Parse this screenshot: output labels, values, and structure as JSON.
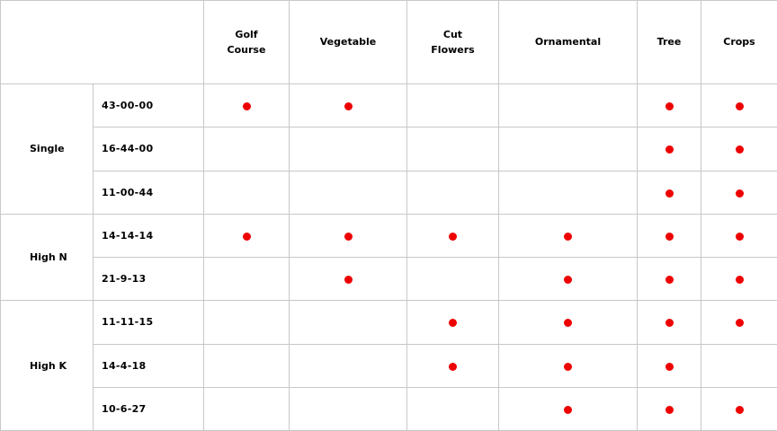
{
  "colors": {
    "dot": "#ee0000",
    "border": "#c8c8c8",
    "text": "#000000"
  },
  "chart_data": {
    "type": "table",
    "title": "",
    "corner_label": "",
    "columns": [
      "Golf Course",
      "Vegetable",
      "Cut Flowers",
      "Ornamental",
      "Tree",
      "Crops"
    ],
    "mark_symbol": "red-dot",
    "row_groups": [
      {
        "label": "Single",
        "rows": [
          {
            "formulation": "43-00-00",
            "marks": [
              true,
              true,
              false,
              false,
              true,
              true
            ]
          },
          {
            "formulation": "16-44-00",
            "marks": [
              false,
              false,
              false,
              false,
              true,
              true
            ]
          },
          {
            "formulation": "11-00-44",
            "marks": [
              false,
              false,
              false,
              false,
              true,
              true
            ]
          }
        ]
      },
      {
        "label": "High N",
        "rows": [
          {
            "formulation": "14-14-14",
            "marks": [
              true,
              true,
              true,
              true,
              true,
              true
            ]
          },
          {
            "formulation": "21-9-13",
            "marks": [
              false,
              true,
              false,
              true,
              true,
              true
            ]
          }
        ]
      },
      {
        "label": "High K",
        "rows": [
          {
            "formulation": "11-11-15",
            "marks": [
              false,
              false,
              true,
              true,
              true,
              true
            ]
          },
          {
            "formulation": "14-4-18",
            "marks": [
              false,
              false,
              true,
              true,
              true,
              false
            ]
          },
          {
            "formulation": "10-6-27",
            "marks": [
              false,
              false,
              false,
              true,
              true,
              true
            ]
          }
        ]
      }
    ]
  }
}
